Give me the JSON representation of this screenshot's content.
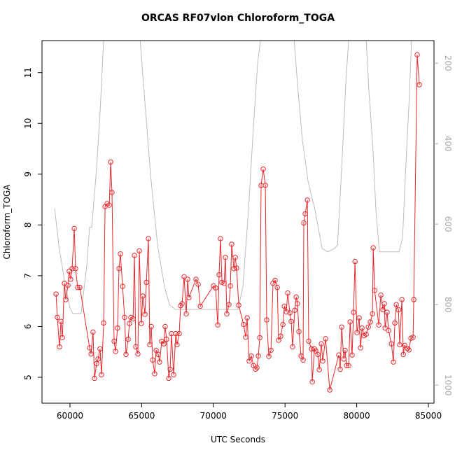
{
  "chart_data": {
    "type": "line",
    "title": "ORCAS RF07vlon Chloroform_TOGA",
    "x_label": "UTC Seconds",
    "y_label": "Chloroform_TOGA",
    "xlim": [
      58050,
      85390
    ],
    "ylim": [
      4.49,
      11.63
    ],
    "y2lim": [
      1045,
      144
    ],
    "xticks": [
      60000,
      65000,
      70000,
      75000,
      80000,
      85000
    ],
    "yticks": [
      5,
      6,
      7,
      8,
      9,
      10,
      11
    ],
    "y2ticks": [
      200,
      400,
      600,
      800,
      1000
    ],
    "y2_tick_color": "#aaaaaa",
    "series": [
      {
        "color": "#bbbbbb",
        "axis": "y2",
        "markers": false,
        "x": [
          58930,
          59220,
          59610,
          60000,
          60200,
          60780,
          61170,
          61370,
          61520,
          61860,
          62100,
          62350,
          64890,
          65130,
          65620,
          66110,
          66600,
          66940,
          67330,
          71720,
          72060,
          72450,
          72800,
          73090,
          73290,
          75630,
          75870,
          76210,
          76610,
          77090,
          77580,
          77970,
          78460,
          78660,
          78900,
          79240,
          79440,
          80660,
          80850,
          81150,
          81340,
          81580,
          82950,
          83200,
          83440,
          83640,
          83830
        ],
        "values": [
          561,
          652,
          739,
          808,
          822,
          822,
          704,
          608,
          608,
          461,
          321,
          140,
          140,
          252,
          478,
          652,
          756,
          800,
          812,
          812,
          756,
          565,
          356,
          200,
          140,
          140,
          252,
          391,
          495,
          565,
          660,
          669,
          660,
          652,
          495,
          252,
          140,
          140,
          269,
          426,
          565,
          669,
          669,
          635,
          443,
          304,
          140
        ]
      },
      {
        "color": "#e8262a",
        "markers": true,
        "x": [
          59030,
          59120,
          59270,
          59370,
          59470,
          59610,
          59710,
          59860,
          59950,
          60050,
          60150,
          60300,
          60390,
          60540,
          60690,
          61370,
          61470,
          61610,
          61710,
          61860,
          61960,
          62100,
          62200,
          62350,
          62450,
          62590,
          62740,
          62840,
          62930,
          63080,
          63180,
          63320,
          63420,
          63520,
          63670,
          63810,
          63910,
          64060,
          64150,
          64250,
          64400,
          64500,
          64590,
          64740,
          64840,
          64980,
          65080,
          65230,
          65330,
          65470,
          65570,
          65670,
          65770,
          65910,
          66010,
          66160,
          66250,
          66400,
          66550,
          66640,
          66740,
          66890,
          66990,
          67080,
          67230,
          67380,
          67470,
          67620,
          67720,
          67820,
          67960,
          68110,
          68210,
          68300,
          68790,
          68940,
          69090,
          70010,
          70160,
          70310,
          70400,
          70500,
          70600,
          70750,
          70840,
          70940,
          71090,
          71190,
          71280,
          71430,
          71530,
          71620,
          71770,
          72110,
          72260,
          72360,
          72500,
          72650,
          72800,
          72940,
          73040,
          73140,
          73240,
          73330,
          73480,
          73630,
          73720,
          73870,
          74020,
          74160,
          74310,
          74460,
          74550,
          74700,
          74850,
          74950,
          75090,
          75190,
          75340,
          75430,
          75530,
          75680,
          75780,
          75870,
          75970,
          76120,
          76260,
          76310,
          76410,
          76560,
          76650,
          76850,
          76900,
          77050,
          77140,
          77290,
          77390,
          77530,
          77630,
          77830,
          78120,
          78750,
          78850,
          78950,
          79100,
          79190,
          79290,
          79440,
          79540,
          79680,
          79780,
          79880,
          80020,
          80170,
          80270,
          80370,
          80510,
          80660,
          80810,
          80950,
          81100,
          81150,
          81250,
          81540,
          81680,
          81830,
          81930,
          81980,
          82120,
          82220,
          82420,
          82560,
          82660,
          82760,
          82910,
          83000,
          83150,
          83250,
          83340,
          83540,
          83640,
          83780,
          83930,
          83980,
          84220,
          84370
        ],
        "values": [
          6.64,
          6.18,
          5.6,
          6.1,
          5.78,
          6.85,
          6.53,
          6.81,
          7.09,
          6.93,
          7.14,
          7.93,
          7.14,
          6.77,
          6.77,
          5.58,
          5.46,
          5.89,
          4.98,
          5.27,
          5.36,
          5.56,
          5.05,
          6.07,
          8.36,
          8.42,
          8.39,
          9.24,
          8.64,
          5.71,
          5.51,
          5.97,
          7.14,
          7.43,
          6.79,
          6.18,
          5.45,
          5.75,
          6.06,
          6.18,
          6.15,
          7.4,
          5.6,
          5.46,
          7.49,
          6.06,
          6.6,
          6.24,
          6.87,
          7.73,
          5.64,
          6.0,
          5.34,
          5.07,
          5.53,
          5.45,
          5.3,
          5.71,
          5.66,
          6.0,
          5.75,
          4.98,
          5.16,
          5.86,
          5.05,
          5.86,
          5.64,
          5.86,
          6.41,
          6.45,
          6.98,
          6.25,
          6.93,
          6.57,
          6.93,
          6.83,
          6.4,
          6.8,
          6.76,
          6.03,
          7.02,
          7.73,
          6.87,
          6.85,
          7.36,
          6.25,
          6.43,
          6.8,
          7.62,
          7.14,
          7.36,
          7.15,
          6.42,
          6.04,
          5.79,
          6.17,
          5.32,
          5.42,
          5.23,
          5.16,
          5.19,
          5.42,
          5.78,
          8.78,
          9.1,
          8.78,
          6.13,
          5.41,
          5.53,
          6.85,
          6.91,
          6.77,
          5.73,
          5.81,
          6.04,
          6.4,
          6.29,
          6.66,
          6.27,
          6.1,
          5.6,
          6.32,
          6.58,
          6.45,
          5.9,
          5.42,
          5.34,
          8.04,
          8.22,
          8.49,
          5.71,
          5.56,
          4.91,
          5.56,
          5.52,
          5.45,
          5.15,
          5.66,
          5.32,
          5.76,
          4.75,
          5.44,
          5.16,
          5.99,
          5.36,
          5.53,
          5.23,
          5.23,
          6.09,
          5.44,
          6.28,
          7.28,
          5.88,
          6.17,
          5.58,
          5.97,
          5.82,
          5.85,
          5.99,
          6.09,
          6.25,
          7.55,
          6.71,
          6.03,
          6.62,
          6.33,
          6.45,
          5.97,
          6.28,
          5.92,
          5.66,
          5.3,
          6.07,
          6.43,
          6.33,
          5.64,
          6.53,
          5.45,
          5.63,
          5.57,
          5.54,
          5.77,
          5.79,
          6.53,
          11.35,
          10.76
        ]
      }
    ]
  }
}
